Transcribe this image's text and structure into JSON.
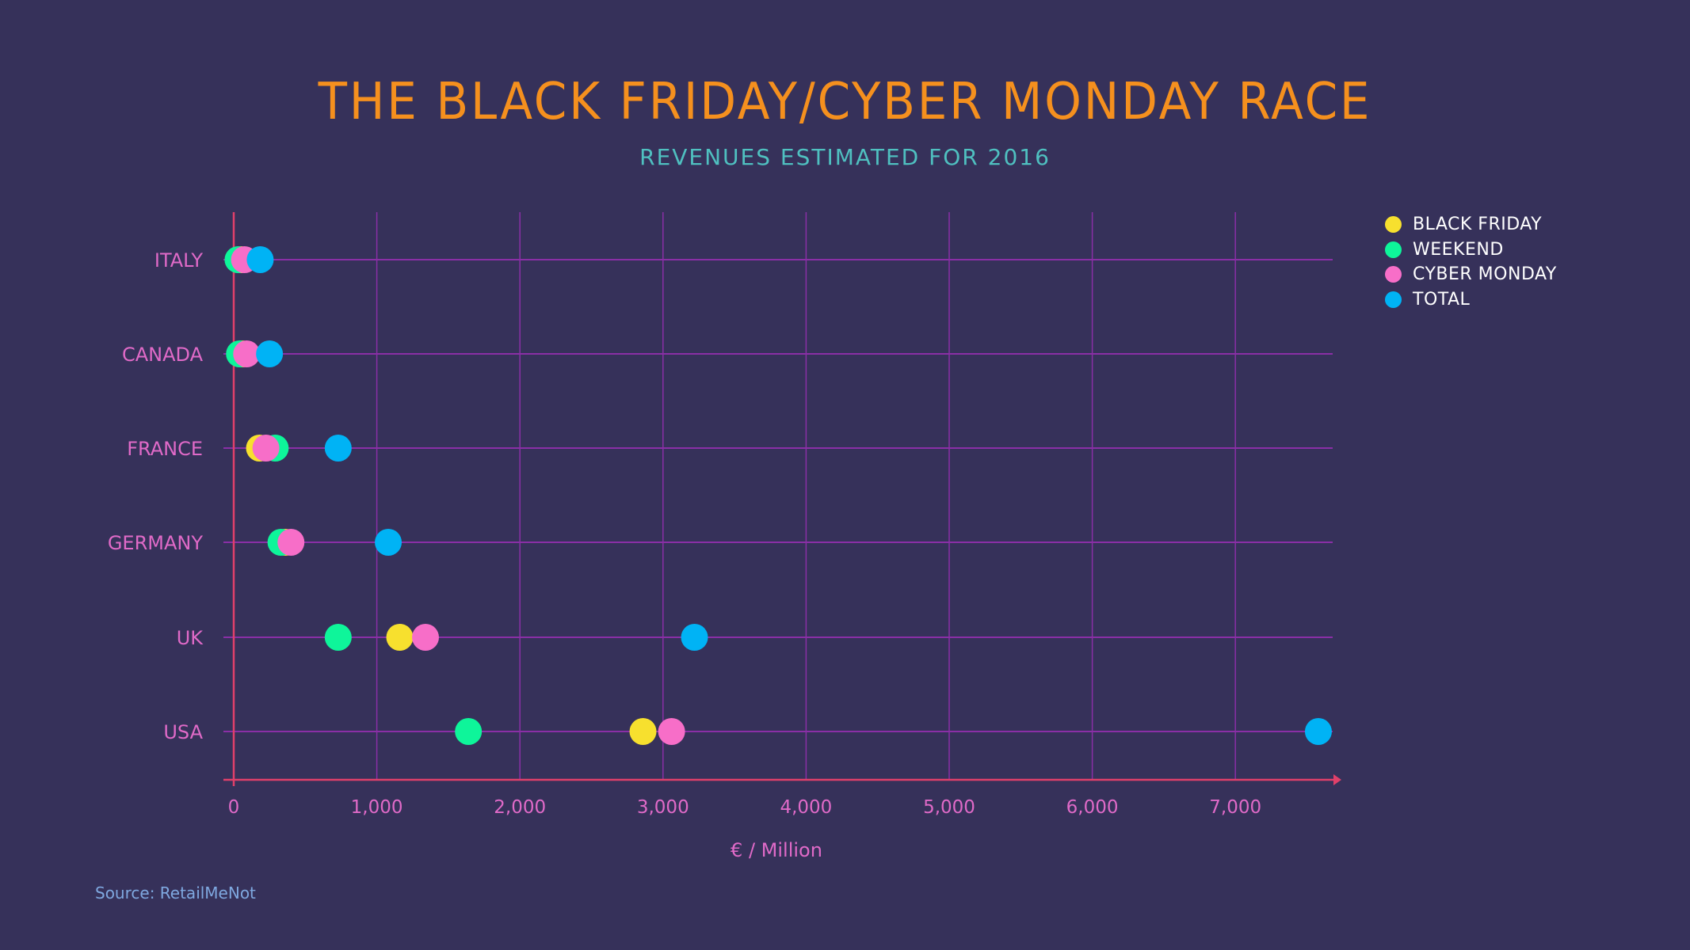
{
  "header": {
    "title": "THE BLACK FRIDAY/CYBER MONDAY RACE",
    "subtitle": "REVENUES ESTIMATED FOR 2016"
  },
  "legend": {
    "items": [
      {
        "label": "BLACK FRIDAY",
        "color": "#f7e02e"
      },
      {
        "label": "WEEKEND",
        "color": "#0ef59a"
      },
      {
        "label": "CYBER MONDAY",
        "color": "#f76ec8"
      },
      {
        "label": "TOTAL",
        "color": "#00b3f5"
      }
    ]
  },
  "footer": {
    "xlabel": "€ / Million",
    "source": "Source: RetailMeNot"
  },
  "colors": {
    "background": "#36315a",
    "title": "#f5901e",
    "subtitle": "#4fc0c0",
    "axis": "#e0406a",
    "grid": "#8a2fa6",
    "label": "#e06ac8",
    "source": "#7fa8e0"
  },
  "chart_data": {
    "type": "scatter",
    "subtype": "dot-plot",
    "title": "THE BLACK FRIDAY/CYBER MONDAY RACE",
    "subtitle": "REVENUES ESTIMATED FOR 2016",
    "xlabel": "€ / Million",
    "ylabel": "",
    "xlim": [
      0,
      7700
    ],
    "xticks": [
      0,
      1000,
      2000,
      3000,
      4000,
      5000,
      6000,
      7000
    ],
    "xtick_labels": [
      "0",
      "1,000",
      "2,000",
      "3,000",
      "4,000",
      "5,000",
      "6,000",
      "7,000"
    ],
    "grid": true,
    "legend_position": "top-right",
    "categories": [
      "ITALY",
      "CANADA",
      "FRANCE",
      "GERMANY",
      "UK",
      "USA"
    ],
    "series": [
      {
        "name": "BLACK FRIDAY",
        "color": "#f7e02e",
        "values": [
          50,
          60,
          180,
          360,
          1160,
          2860
        ]
      },
      {
        "name": "WEEKEND",
        "color": "#0ef59a",
        "values": [
          30,
          40,
          290,
          330,
          730,
          1640
        ]
      },
      {
        "name": "CYBER MONDAY",
        "color": "#f76ec8",
        "values": [
          75,
          90,
          225,
          400,
          1340,
          3060
        ]
      },
      {
        "name": "TOTAL",
        "color": "#00b3f5",
        "values": [
          185,
          250,
          730,
          1080,
          3220,
          7580
        ]
      }
    ],
    "source": "Source: RetailMeNot"
  }
}
